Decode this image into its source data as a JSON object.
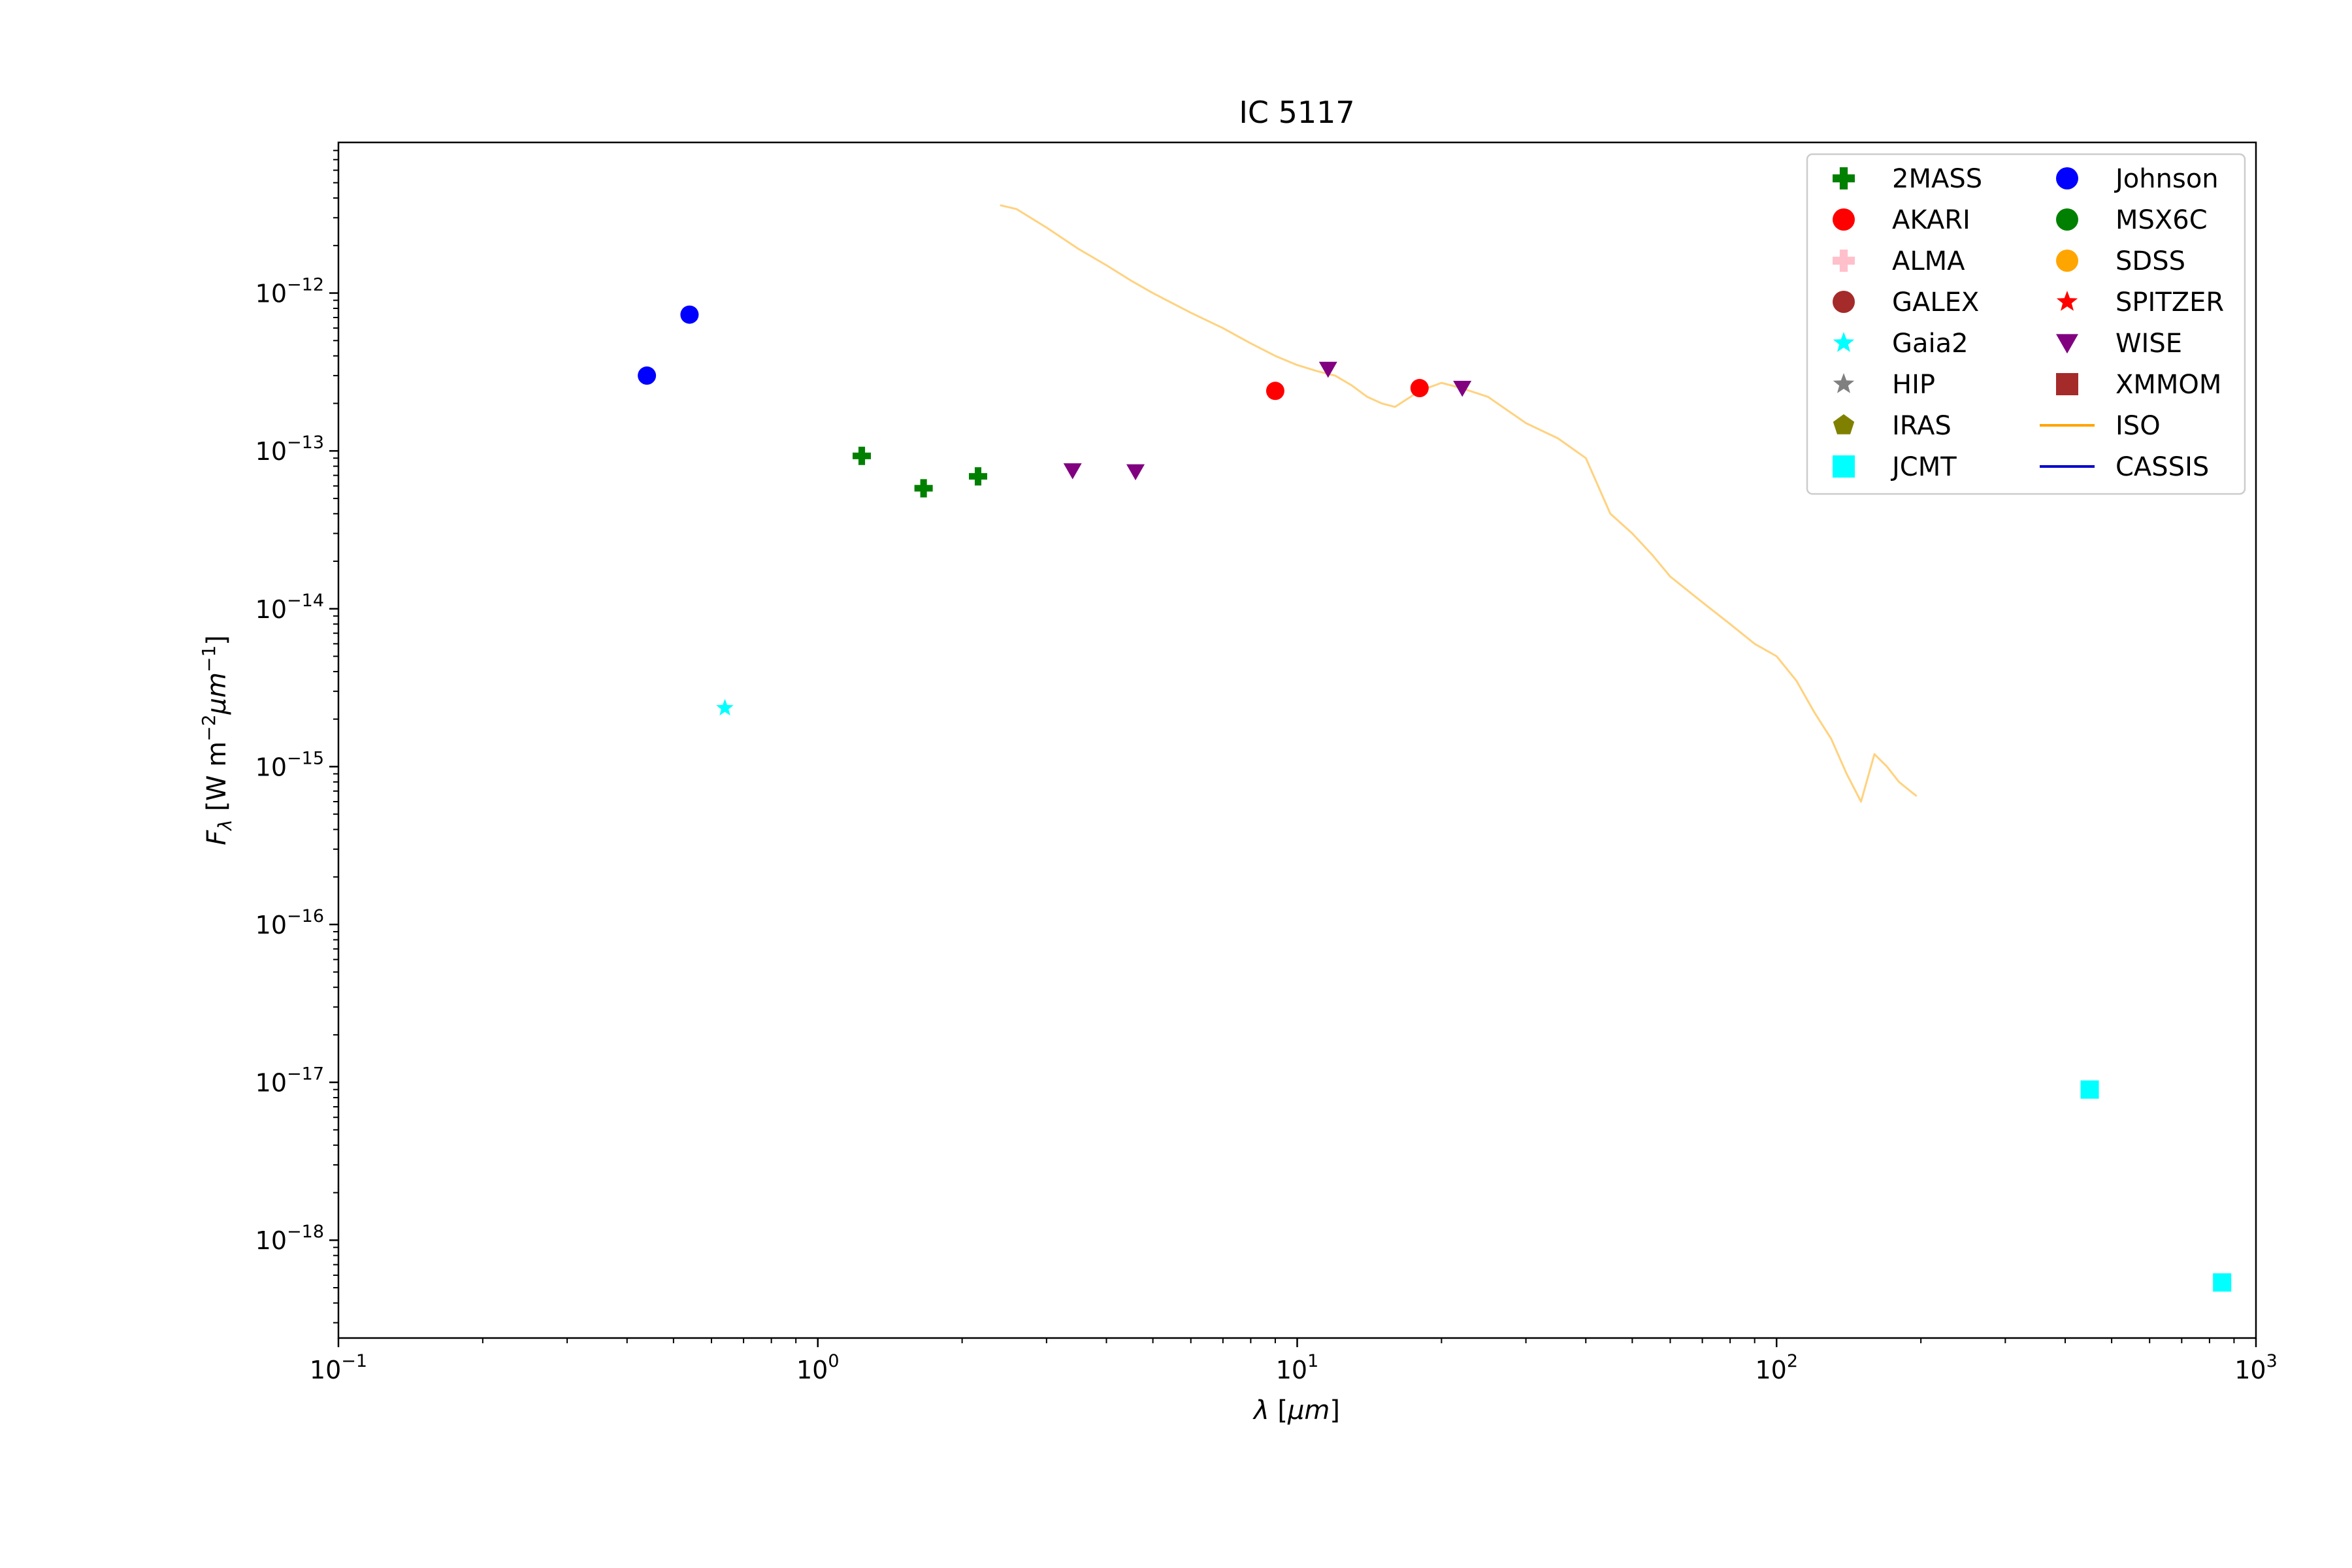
{
  "chart_data": {
    "type": "scatter",
    "title": "IC 5117",
    "xlabel": "λ [μm]",
    "ylabel": "F_λ [W m^-2 μm^-1]",
    "xscale": "log",
    "yscale": "log",
    "xlim": [
      0.1,
      1000
    ],
    "ylim": [
      2.4e-19,
      9e-12
    ],
    "x_ticks": [
      {
        "base": "10",
        "exp": "−1",
        "value": 0.1
      },
      {
        "base": "10",
        "exp": "0",
        "value": 1
      },
      {
        "base": "10",
        "exp": "1",
        "value": 10
      },
      {
        "base": "10",
        "exp": "2",
        "value": 100
      },
      {
        "base": "10",
        "exp": "3",
        "value": 1000
      }
    ],
    "y_ticks": [
      {
        "base": "10",
        "exp": "−18",
        "value": 1e-18
      },
      {
        "base": "10",
        "exp": "−17",
        "value": 1e-17
      },
      {
        "base": "10",
        "exp": "−16",
        "value": 1e-16
      },
      {
        "base": "10",
        "exp": "−15",
        "value": 1e-15
      },
      {
        "base": "10",
        "exp": "−14",
        "value": 1e-14
      },
      {
        "base": "10",
        "exp": "−13",
        "value": 1e-13
      },
      {
        "base": "10",
        "exp": "−12",
        "value": 1e-12
      }
    ],
    "grid": false,
    "legend_position": "top-right",
    "series": [
      {
        "name": "2MASS",
        "marker": "plus",
        "color": "#008000",
        "points": [
          [
            1.235,
            9.3e-14
          ],
          [
            1.662,
            5.8e-14
          ],
          [
            2.159,
            6.9e-14
          ]
        ]
      },
      {
        "name": "AKARI",
        "marker": "circle",
        "color": "#ff0000",
        "points": [
          [
            9.0,
            2.4e-13
          ],
          [
            18.0,
            2.5e-13
          ]
        ]
      },
      {
        "name": "ALMA",
        "marker": "plus",
        "color": "#ffc0cb",
        "points": []
      },
      {
        "name": "GALEX",
        "marker": "circle",
        "color": "#a52a2a",
        "points": []
      },
      {
        "name": "Gaia2",
        "marker": "star",
        "color": "#00ffff",
        "points": [
          [
            0.64,
            2.35e-15
          ]
        ]
      },
      {
        "name": "HIP",
        "marker": "star",
        "color": "#808080",
        "points": []
      },
      {
        "name": "IRAS",
        "marker": "pentagon",
        "color": "#808000",
        "points": []
      },
      {
        "name": "JCMT",
        "marker": "square",
        "color": "#00ffff",
        "points": [
          [
            450,
            9e-18
          ],
          [
            850,
            5.4e-19
          ]
        ]
      },
      {
        "name": "Johnson",
        "marker": "circle",
        "color": "#0000ff",
        "points": [
          [
            0.44,
            3e-13
          ],
          [
            0.54,
            7.3e-13
          ]
        ]
      },
      {
        "name": "MSX6C",
        "marker": "circle",
        "color": "#008000",
        "points": []
      },
      {
        "name": "SDSS",
        "marker": "circle",
        "color": "#ffa500",
        "points": []
      },
      {
        "name": "SPITZER",
        "marker": "star",
        "color": "#ff0000",
        "points": []
      },
      {
        "name": "WISE",
        "marker": "triangle-down",
        "color": "#800080",
        "points": [
          [
            3.4,
            7.5e-14
          ],
          [
            4.6,
            7.4e-14
          ],
          [
            11.6,
            3.3e-13
          ],
          [
            22.1,
            2.5e-13
          ]
        ]
      },
      {
        "name": "XMMOM",
        "marker": "square",
        "color": "#a52a2a",
        "points": []
      },
      {
        "name": "ISO",
        "marker": "line",
        "color": "#ffa500",
        "points": [
          [
            2.4,
            3.6e-12
          ],
          [
            2.6,
            3.4e-12
          ],
          [
            3.0,
            2.6e-12
          ],
          [
            3.5,
            1.9e-12
          ],
          [
            4.0,
            1.5e-12
          ],
          [
            4.5,
            1.2e-12
          ],
          [
            5.0,
            1e-12
          ],
          [
            6.0,
            7.5e-13
          ],
          [
            7.0,
            6e-13
          ],
          [
            8.0,
            4.8e-13
          ],
          [
            9.0,
            4e-13
          ],
          [
            10.0,
            3.5e-13
          ],
          [
            11.0,
            3.2e-13
          ],
          [
            12.0,
            3e-13
          ],
          [
            13.0,
            2.6e-13
          ],
          [
            14.0,
            2.2e-13
          ],
          [
            15.0,
            2e-13
          ],
          [
            16.0,
            1.9e-13
          ],
          [
            18.0,
            2.4e-13
          ],
          [
            20.0,
            2.7e-13
          ],
          [
            22.0,
            2.5e-13
          ],
          [
            25.0,
            2.2e-13
          ],
          [
            30.0,
            1.5e-13
          ],
          [
            35.0,
            1.2e-13
          ],
          [
            40.0,
            9e-14
          ],
          [
            45.0,
            4e-14
          ],
          [
            50.0,
            3e-14
          ],
          [
            55.0,
            2.2e-14
          ],
          [
            60.0,
            1.6e-14
          ],
          [
            70.0,
            1.1e-14
          ],
          [
            80.0,
            8e-15
          ],
          [
            90.0,
            6e-15
          ],
          [
            100.0,
            5e-15
          ],
          [
            110.0,
            3.5e-15
          ],
          [
            120.0,
            2.2e-15
          ],
          [
            130.0,
            1.5e-15
          ],
          [
            140.0,
            9e-16
          ],
          [
            150.0,
            6e-16
          ],
          [
            160.0,
            1.2e-15
          ],
          [
            170.0,
            1e-15
          ],
          [
            180.0,
            8e-16
          ],
          [
            190.0,
            7e-16
          ],
          [
            196.0,
            6.5e-16
          ]
        ]
      },
      {
        "name": "CASSIS",
        "marker": "line",
        "color": "#0000cd",
        "points": []
      }
    ]
  }
}
